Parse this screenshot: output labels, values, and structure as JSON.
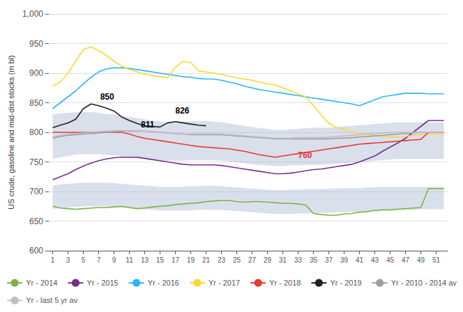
{
  "chart_data": {
    "type": "line",
    "title": "",
    "ylabel": "US crude, gasoline and mid-dist stocks (m bl)",
    "x": [
      1,
      2,
      3,
      4,
      5,
      6,
      7,
      8,
      9,
      10,
      11,
      12,
      13,
      14,
      15,
      16,
      17,
      18,
      19,
      20,
      21,
      22,
      23,
      24,
      25,
      26,
      27,
      28,
      29,
      30,
      31,
      32,
      33,
      34,
      35,
      36,
      37,
      38,
      39,
      40,
      41,
      42,
      43,
      44,
      45,
      46,
      47,
      48,
      49,
      50,
      51,
      52
    ],
    "xlim": [
      0.5,
      52.5
    ],
    "xticks": [
      1,
      3,
      5,
      7,
      9,
      11,
      13,
      15,
      17,
      19,
      21,
      23,
      25,
      27,
      29,
      31,
      33,
      35,
      37,
      39,
      41,
      43,
      45,
      47,
      49,
      51
    ],
    "ylim": [
      600,
      1000
    ],
    "yticks": [
      600,
      650,
      700,
      750,
      800,
      850,
      900,
      950,
      {
        "value": 1000,
        "label": "1,000"
      }
    ],
    "grid": true,
    "legend": "bottom",
    "series": [
      {
        "name": "Yr - 2014",
        "color": "#7cb342",
        "values": [
          675,
          672,
          671,
          670,
          671,
          672,
          673,
          673,
          674,
          675,
          673,
          671,
          672,
          674,
          675,
          676,
          678,
          679,
          680,
          681,
          683,
          684,
          685,
          685,
          683,
          682,
          683,
          683,
          682,
          681,
          680,
          680,
          679,
          677,
          663,
          661,
          660,
          660,
          662,
          663,
          665,
          666,
          668,
          669,
          669,
          670,
          671,
          672,
          673,
          705,
          705,
          705
        ]
      },
      {
        "name": "Yr - 2015",
        "color": "#7b2d8b",
        "values": [
          720,
          725,
          730,
          737,
          743,
          748,
          752,
          755,
          757,
          758,
          758,
          758,
          756,
          754,
          752,
          750,
          748,
          746,
          745,
          745,
          745,
          745,
          744,
          742,
          740,
          738,
          736,
          734,
          732,
          730,
          730,
          731,
          733,
          735,
          737,
          738,
          740,
          742,
          744,
          746,
          750,
          755,
          760,
          768,
          775,
          782,
          790,
          800,
          810,
          820,
          820,
          820
        ]
      },
      {
        "name": "Yr - 2016",
        "color": "#29b6f6",
        "values": [
          840,
          850,
          860,
          870,
          882,
          893,
          902,
          907,
          909,
          909,
          908,
          906,
          904,
          902,
          900,
          898,
          896,
          894,
          893,
          891,
          890,
          890,
          888,
          885,
          882,
          878,
          875,
          872,
          870,
          868,
          866,
          864,
          862,
          860,
          858,
          856,
          854,
          852,
          850,
          848,
          845,
          850,
          855,
          860,
          862,
          864,
          866,
          866,
          866,
          865,
          865,
          865
        ]
      },
      {
        "name": "Yr - 2017",
        "color": "#fdd835",
        "values": [
          878,
          885,
          900,
          920,
          940,
          944,
          938,
          930,
          920,
          912,
          906,
          902,
          898,
          896,
          894,
          892,
          910,
          920,
          918,
          904,
          902,
          900,
          898,
          895,
          892,
          890,
          888,
          885,
          882,
          880,
          875,
          870,
          865,
          860,
          845,
          830,
          815,
          808,
          805,
          800,
          798,
          796,
          795,
          793,
          792,
          792,
          793,
          795,
          796,
          797,
          797,
          797
        ]
      },
      {
        "name": "Yr - 2018",
        "color": "#e53935",
        "values": [
          800,
          800,
          800,
          800,
          800,
          800,
          800,
          800,
          800,
          800,
          797,
          793,
          790,
          788,
          786,
          784,
          782,
          780,
          778,
          776,
          775,
          774,
          773,
          772,
          770,
          768,
          765,
          762,
          760,
          758,
          760,
          762,
          764,
          766,
          768,
          770,
          772,
          774,
          776,
          778,
          780,
          781,
          782,
          783,
          784,
          785,
          786,
          787,
          788,
          800,
          800,
          800
        ]
      },
      {
        "name": "Yr - 2019",
        "color": "#212121",
        "values": [
          808,
          812,
          816,
          822,
          840,
          848,
          845,
          841,
          836,
          826,
          820,
          815,
          811,
          810,
          809,
          816,
          818,
          816,
          814,
          812,
          811,
          null,
          null,
          null,
          null,
          null,
          null,
          null,
          null,
          null,
          null,
          null,
          null,
          null,
          null,
          null,
          null,
          null,
          null,
          null,
          null,
          null,
          null,
          null,
          null,
          null,
          null,
          null,
          null,
          null,
          null,
          null
        ]
      },
      {
        "name": "Yr - 2010 - 2014 av",
        "color": "#9e9e9e",
        "values": [
          790,
          793,
          795,
          796,
          797,
          798,
          799,
          800,
          801,
          802,
          802,
          802,
          802,
          801,
          800,
          799,
          798,
          797,
          796,
          796,
          796,
          796,
          796,
          795,
          794,
          793,
          792,
          791,
          790,
          789,
          789,
          789,
          789,
          789,
          789,
          789,
          789,
          790,
          790,
          791,
          792,
          793,
          794,
          795,
          796,
          797,
          798,
          799,
          800,
          800,
          800,
          800
        ]
      },
      {
        "name": "Yr - last 5 yr av",
        "color": "#c8b8c8",
        "values": [
          792,
          795,
          797,
          798,
          799,
          800,
          801,
          802,
          803,
          803,
          803,
          803,
          802,
          801,
          800,
          799,
          798,
          797,
          797,
          797,
          797,
          797,
          797,
          796,
          795,
          794,
          793,
          792,
          791,
          790,
          790,
          790,
          791,
          791,
          791,
          791,
          792,
          793,
          794,
          795,
          796,
          797,
          798,
          799,
          800,
          800,
          800,
          800,
          800,
          800,
          800,
          800
        ]
      }
    ],
    "bands": [
      {
        "color": "#aabbd4",
        "lower": [
          755,
          758,
          760,
          762,
          763,
          763,
          763,
          762,
          761,
          759,
          757,
          756,
          755,
          754,
          753,
          752,
          752,
          752,
          753,
          753,
          753,
          753,
          752,
          751,
          749,
          748,
          746,
          745,
          744,
          743,
          743,
          744,
          744,
          745,
          745,
          745,
          746,
          747,
          748,
          749,
          750,
          751,
          752,
          753,
          754,
          755,
          755,
          755,
          755,
          755,
          755,
          755
        ],
        "upper": [
          830,
          832,
          833,
          834,
          834,
          834,
          833,
          831,
          830,
          828,
          826,
          824,
          822,
          820,
          818,
          817,
          817,
          818,
          819,
          819,
          819,
          818,
          817,
          815,
          813,
          811,
          809,
          807,
          806,
          804,
          804,
          805,
          806,
          807,
          808,
          808,
          808,
          809,
          810,
          811,
          812,
          813,
          814,
          815,
          816,
          817,
          817,
          817,
          817,
          817,
          817,
          817
        ]
      },
      {
        "color": "#aabbd4",
        "lower": [
          670,
          672,
          673,
          674,
          675,
          675,
          675,
          675,
          674,
          673,
          672,
          671,
          670,
          669,
          668,
          668,
          668,
          668,
          668,
          669,
          669,
          669,
          669,
          668,
          667,
          666,
          665,
          664,
          663,
          662,
          662,
          662,
          663,
          663,
          663,
          664,
          664,
          665,
          665,
          666,
          666,
          667,
          667,
          668,
          668,
          669,
          669,
          669,
          670,
          670,
          670,
          670
        ],
        "upper": [
          710,
          712,
          713,
          714,
          715,
          715,
          715,
          715,
          714,
          713,
          712,
          711,
          710,
          709,
          708,
          708,
          708,
          708,
          709,
          709,
          710,
          710,
          709,
          708,
          707,
          706,
          705,
          704,
          703,
          702,
          702,
          703,
          703,
          704,
          704,
          704,
          705,
          705,
          706,
          706,
          706,
          707,
          707,
          708,
          708,
          708,
          708,
          708,
          708,
          708,
          708,
          708
        ]
      }
    ],
    "annotations": [
      {
        "x": 7.2,
        "y": 853,
        "text": "850",
        "color": "#000000"
      },
      {
        "x": 17.0,
        "y": 829,
        "text": "826",
        "color": "#000000"
      },
      {
        "x": 12.5,
        "y": 806,
        "text": "811",
        "color": "#000000"
      },
      {
        "x": 33.0,
        "y": 754,
        "text": "760",
        "color": "#e53935"
      }
    ]
  }
}
